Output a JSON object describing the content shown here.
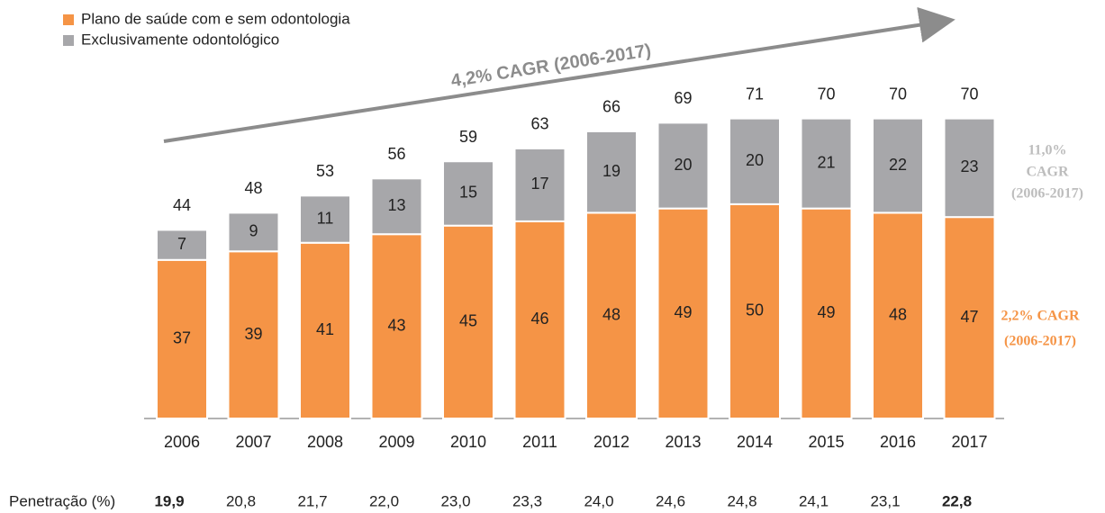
{
  "chart_data": {
    "type": "stacked_bar",
    "categories": [
      "2006",
      "2007",
      "2008",
      "2009",
      "2010",
      "2011",
      "2012",
      "2013",
      "2014",
      "2015",
      "2016",
      "2017"
    ],
    "series": [
      {
        "name": "Plano de saúde com e sem odontologia",
        "color": "#f59446",
        "values": [
          37,
          39,
          41,
          43,
          45,
          46,
          48,
          49,
          50,
          49,
          48,
          47
        ]
      },
      {
        "name": "Exclusivamente odontológico",
        "color": "#a7a7aa",
        "values": [
          7,
          9,
          11,
          13,
          15,
          17,
          19,
          20,
          20,
          21,
          22,
          23
        ]
      }
    ],
    "totals": [
      44,
      48,
      53,
      56,
      59,
      63,
      66,
      69,
      71,
      70,
      70,
      70
    ],
    "ylim": [
      0,
      80
    ],
    "trend_annotation": "4,2% CAGR (2006-2017)",
    "series_annotations": [
      [
        "2,2% CAGR",
        "(2006-2017)"
      ],
      [
        "11,0%",
        "CAGR",
        "(2006-2017)"
      ]
    ],
    "penetration_label": "Penetração (%)",
    "penetration_values": [
      "19,9",
      "20,8",
      "21,7",
      "22,0",
      "23,0",
      "23,3",
      "24,0",
      "24,6",
      "24,8",
      "24,1",
      "23,1",
      "22,8"
    ]
  }
}
